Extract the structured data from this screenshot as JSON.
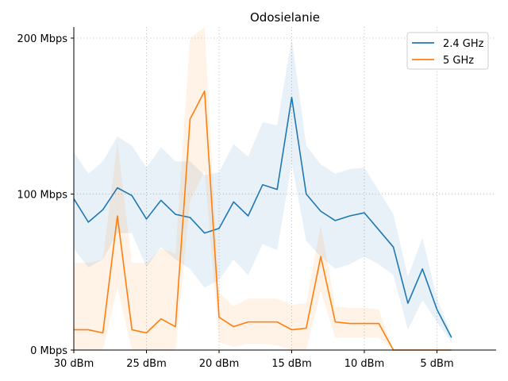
{
  "chart_data": {
    "type": "line",
    "title": "Odosielanie",
    "xlabel": "",
    "ylabel": "",
    "x_ticks": [
      "30 dBm",
      "25 dBm",
      "20 dBm",
      "15 dBm",
      "10 dBm",
      "5 dBm"
    ],
    "x_tick_values": [
      30,
      25,
      20,
      15,
      10,
      5
    ],
    "x_range_note": "descending",
    "xlim": [
      30,
      1
    ],
    "y_ticks": [
      "0 Mbps",
      "100 Mbps",
      "200 Mbps"
    ],
    "y_tick_values": [
      0,
      100,
      200
    ],
    "ylim": [
      0,
      200
    ],
    "grid": true,
    "legend_position": "top-right",
    "x": [
      30,
      29,
      28,
      27,
      26,
      25,
      24,
      23,
      22,
      21,
      20,
      19,
      18,
      17,
      16,
      15,
      14,
      13,
      12,
      11,
      10,
      9,
      8,
      7,
      6,
      5,
      4
    ],
    "series": [
      {
        "name": "2.4 GHz",
        "color": "#1f77b4",
        "band_color": "#1f77b4",
        "values": [
          97,
          82,
          90,
          104,
          99,
          84,
          96,
          87,
          85,
          75,
          78,
          95,
          86,
          106,
          103,
          162,
          100,
          89,
          83,
          86,
          88,
          77,
          66,
          30,
          52,
          26,
          8
        ],
        "band_low": [
          65,
          53,
          58,
          75,
          75,
          53,
          66,
          58,
          52,
          40,
          45,
          58,
          48,
          68,
          64,
          120,
          70,
          60,
          52,
          55,
          60,
          55,
          48,
          13,
          32,
          18,
          5
        ],
        "band_high": [
          127,
          113,
          121,
          137,
          131,
          117,
          130,
          121,
          121,
          112,
          114,
          132,
          124,
          146,
          144,
          200,
          131,
          119,
          113,
          116,
          117,
          102,
          87,
          47,
          72,
          33,
          10
        ]
      },
      {
        "name": "5 GHz",
        "color": "#ff7f0e",
        "band_color": "#ff7f0e",
        "values": [
          13,
          13,
          11,
          86,
          13,
          11,
          20,
          15,
          148,
          166,
          21,
          15,
          18,
          18,
          18,
          13,
          14,
          60,
          18,
          17,
          17,
          17,
          0,
          0,
          0,
          0,
          0
        ],
        "band_low": [
          0,
          0,
          0,
          40,
          0,
          0,
          0,
          0,
          95,
          115,
          5,
          2,
          4,
          4,
          3,
          0,
          0,
          38,
          8,
          8,
          8,
          8,
          0,
          0,
          0,
          0,
          0
        ],
        "band_high": [
          56,
          56,
          58,
          133,
          56,
          56,
          65,
          62,
          200,
          207,
          37,
          28,
          33,
          33,
          33,
          29,
          30,
          80,
          28,
          27,
          27,
          26,
          0,
          0,
          0,
          0,
          0
        ]
      }
    ]
  }
}
